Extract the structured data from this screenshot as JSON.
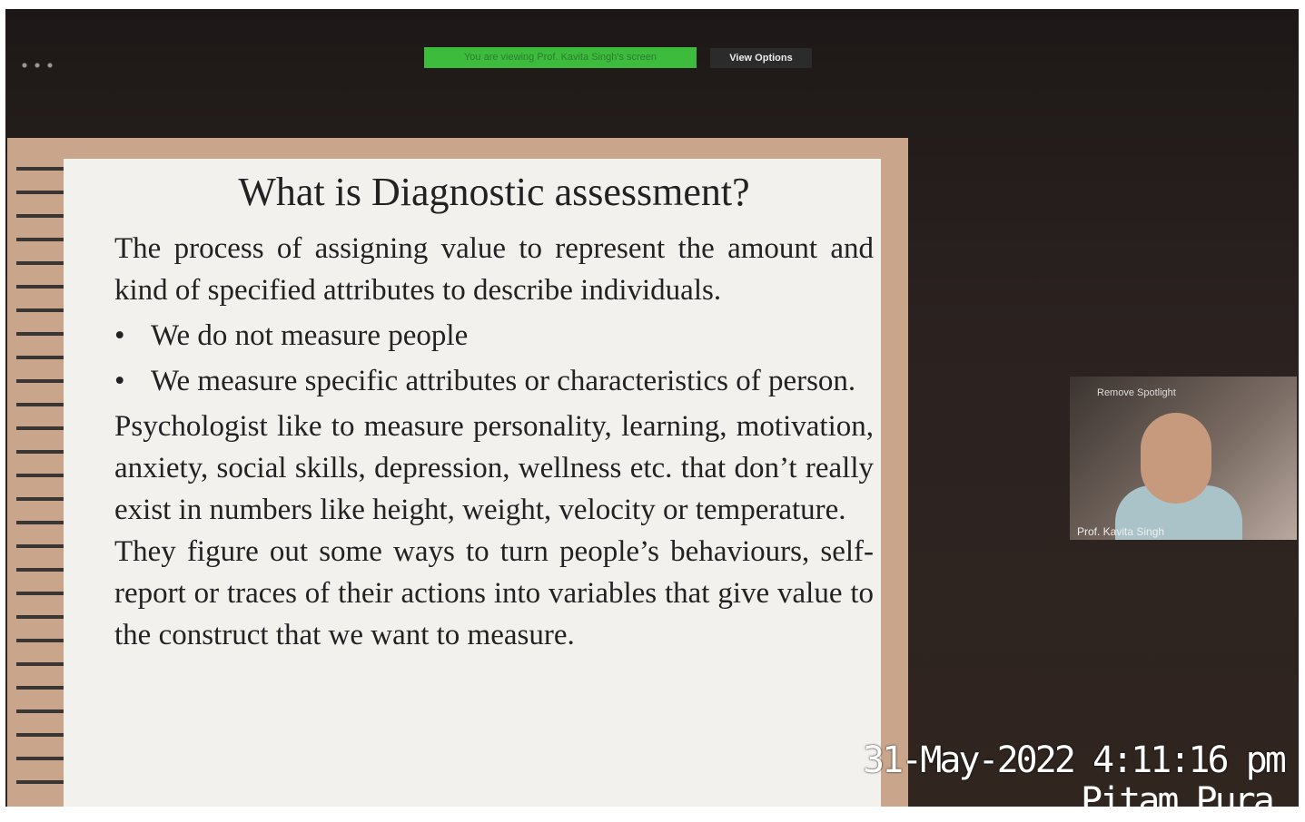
{
  "zoom_bar": {
    "banner": "You are viewing Prof. Kavita Singh's screen",
    "view_options": "View Options"
  },
  "slide": {
    "title": "What is Diagnostic assessment?",
    "intro": "The process of assigning value to represent the amount and kind of specified attributes to describe individuals.",
    "bullets": [
      "We do not measure people",
      "We measure specific attributes or characteristics of person."
    ],
    "paragraphs": [
      "Psychologist like to measure personality, learning, motivation, anxiety, social skills, depression, wellness etc. that don’t really exist in numbers like height, weight, velocity or temperature.",
      "They figure out some ways to turn people’s behaviours, self-report or traces of their actions into variables that give value to the construct that we want to measure."
    ]
  },
  "video": {
    "spotlight": "Remove Spotlight",
    "name": "Prof. Kavita Singh"
  },
  "timestamp": {
    "datetime": "31-May-2022 4:11:16 pm",
    "location": "Pitam Pura"
  }
}
